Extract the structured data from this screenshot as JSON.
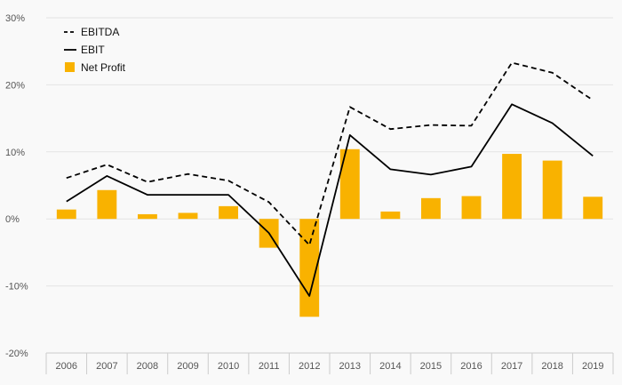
{
  "chart_data": {
    "type": "bar",
    "categories": [
      "2006",
      "2007",
      "2008",
      "2009",
      "2010",
      "2011",
      "2012",
      "2013",
      "2014",
      "2015",
      "2016",
      "2017",
      "2018",
      "2019"
    ],
    "ylim": [
      -20,
      30
    ],
    "yticks": [
      -20,
      -10,
      0,
      10,
      20,
      30
    ],
    "ytick_labels": [
      "-20%",
      "-10%",
      "0%",
      "10%",
      "20%",
      "30%"
    ],
    "grid": true,
    "legend_position": "top-left",
    "series": [
      {
        "name": "EBITDA",
        "type": "line",
        "style": "dashed",
        "color": "#000000",
        "values": [
          6.1,
          8.1,
          5.5,
          6.7,
          5.7,
          2.5,
          -3.9,
          16.7,
          13.4,
          14.0,
          13.9,
          23.3,
          21.8,
          17.7
        ]
      },
      {
        "name": "EBIT",
        "type": "line",
        "style": "solid",
        "color": "#000000",
        "values": [
          2.6,
          6.4,
          3.6,
          3.6,
          3.6,
          -2.1,
          -11.5,
          12.5,
          7.4,
          6.6,
          7.8,
          17.1,
          14.3,
          9.4
        ]
      },
      {
        "name": "Net Profit",
        "type": "bar",
        "color": "#f9b200",
        "values": [
          1.4,
          4.3,
          0.7,
          0.9,
          1.9,
          -4.3,
          -14.6,
          10.4,
          1.1,
          3.1,
          3.4,
          9.7,
          8.7,
          3.3
        ]
      }
    ]
  }
}
